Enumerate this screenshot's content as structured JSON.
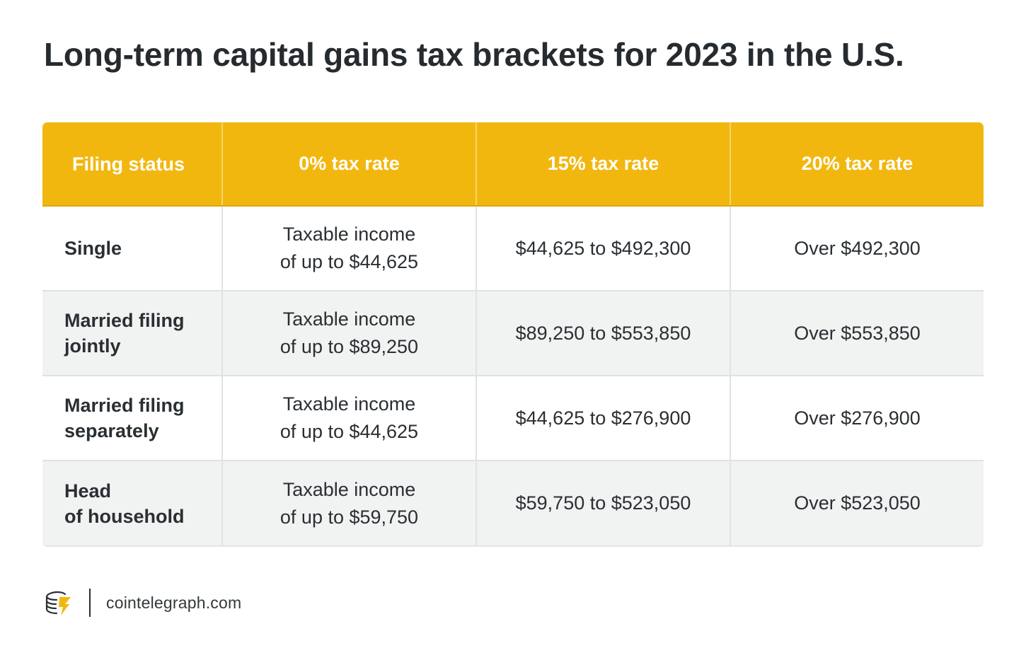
{
  "title": "Long-term capital gains tax brackets for 2023 in the U.S.",
  "table": {
    "headers": [
      "Filing status",
      "0% tax rate",
      "15% tax rate",
      "20% tax rate"
    ],
    "rows": [
      {
        "status": [
          "Single"
        ],
        "zero": [
          "Taxable income",
          "of up to $44,625"
        ],
        "fifteen": "$44,625 to $492,300",
        "twenty": "Over $492,300"
      },
      {
        "status": [
          "Married filing",
          "jointly"
        ],
        "zero": [
          "Taxable income",
          "of up to $89,250"
        ],
        "fifteen": "$89,250 to $553,850",
        "twenty": "Over $553,850"
      },
      {
        "status": [
          "Married filing",
          "separately"
        ],
        "zero": [
          "Taxable income",
          "of up to $44,625"
        ],
        "fifteen": "$44,625 to $276,900",
        "twenty": "Over $276,900"
      },
      {
        "status": [
          "Head",
          "of household"
        ],
        "zero": [
          "Taxable income",
          "of up to $59,750"
        ],
        "fifteen": "$59,750 to $523,050",
        "twenty": "Over $523,050"
      }
    ]
  },
  "footer": {
    "logo_icon": "cointelegraph-logo-icon",
    "site": "cointelegraph.com"
  },
  "colors": {
    "header_bg": "#f2b70f",
    "alt_row_bg": "#f1f2f2",
    "text": "#262b30"
  }
}
